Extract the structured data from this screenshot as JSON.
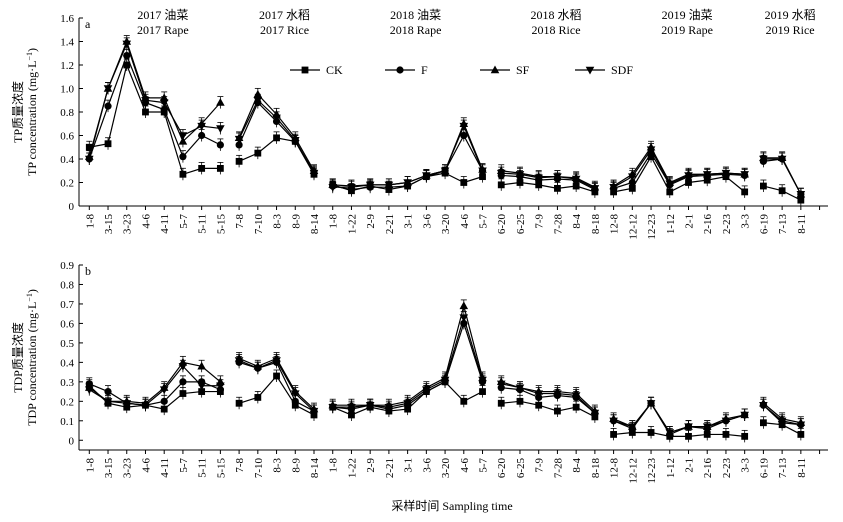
{
  "chart_data": {
    "type": "line",
    "xlabel": "采样时间 Sampling time",
    "x_labels": [
      "1-8",
      "3-15",
      "3-23",
      "4-6",
      "4-11",
      "5-7",
      "5-11",
      "5-15",
      "7-8",
      "7-10",
      "8-3",
      "8-9",
      "8-14",
      "1-8",
      "1-22",
      "2-9",
      "2-21",
      "3-1",
      "3-6",
      "3-20",
      "4-6",
      "5-7",
      "6-20",
      "6-25",
      "7-9",
      "7-28",
      "8-4",
      "8-18",
      "12-8",
      "12-12",
      "12-23",
      "1-12",
      "2-1",
      "2-16",
      "2-23",
      "3-3",
      "6-19",
      "7-13",
      "8-11"
    ],
    "groups": [
      {
        "line1": "2017 油菜",
        "line2": "2017 Rape",
        "start": 0,
        "count": 8
      },
      {
        "line1": "2017 水稻",
        "line2": "2017 Rice",
        "start": 8,
        "count": 5
      },
      {
        "line1": "2018 油菜",
        "line2": "2018 Rape",
        "start": 13,
        "count": 9
      },
      {
        "line1": "2018 水稻",
        "line2": "2018 Rice",
        "start": 22,
        "count": 6
      },
      {
        "line1": "2019 油菜",
        "line2": "2019 Rape",
        "start": 28,
        "count": 8
      },
      {
        "line1": "2019 水稻",
        "line2": "2019 Rice",
        "start": 36,
        "count": 3
      }
    ],
    "legend": [
      "CK",
      "F",
      "SF",
      "SDF"
    ],
    "panels": [
      {
        "label": "a",
        "ylabel_cn": "TP质量浓度",
        "ylabel_en": "TP concentration (mg·L",
        "ylim": [
          0,
          1.6
        ],
        "yticks": [
          "0",
          "0.2",
          "0.4",
          "0.6",
          "0.8",
          "1.0",
          "1.2",
          "1.4",
          "1.6"
        ],
        "series": [
          {
            "name": "CK",
            "values": [
              [
                0.5,
                0.53,
                1.2,
                0.8,
                0.8,
                0.27,
                0.32,
                0.32
              ],
              [
                0.38,
                0.45,
                0.58,
                0.55,
                0.27
              ],
              [
                0.18,
                0.13,
                0.17,
                0.14,
                0.17,
                0.25,
                0.28,
                0.2,
                0.25
              ],
              [
                0.18,
                0.2,
                0.18,
                0.15,
                0.17,
                0.12
              ],
              [
                0.12,
                0.15,
                0.42,
                0.12,
                0.2,
                0.22,
                0.25,
                0.12
              ],
              [
                0.17,
                0.13,
                0.05
              ]
            ]
          },
          {
            "name": "F",
            "values": [
              [
                0.4,
                0.85,
                1.28,
                0.88,
                0.82,
                0.42,
                0.6,
                0.52
              ],
              [
                0.52,
                0.88,
                0.72,
                0.55,
                0.29
              ],
              [
                0.17,
                0.14,
                0.16,
                0.16,
                0.17,
                0.25,
                0.3,
                0.6,
                0.3
              ],
              [
                0.26,
                0.25,
                0.22,
                0.23,
                0.22,
                0.14
              ],
              [
                0.15,
                0.2,
                0.45,
                0.18,
                0.25,
                0.26,
                0.27,
                0.26
              ],
              [
                0.38,
                0.4,
                0.1
              ]
            ]
          },
          {
            "name": "SF",
            "values": [
              [
                0.42,
                1.0,
                1.4,
                0.92,
                0.92,
                0.55,
                0.7,
                0.88
              ],
              [
                0.58,
                0.95,
                0.78,
                0.58,
                0.3
              ],
              [
                0.18,
                0.17,
                0.18,
                0.18,
                0.2,
                0.26,
                0.3,
                0.7,
                0.31
              ],
              [
                0.3,
                0.28,
                0.25,
                0.25,
                0.24,
                0.16
              ],
              [
                0.17,
                0.27,
                0.5,
                0.2,
                0.27,
                0.27,
                0.28,
                0.27
              ],
              [
                0.41,
                0.41,
                0.1
              ]
            ]
          },
          {
            "name": "SDF",
            "values": [
              [
                0.4,
                1.0,
                1.38,
                0.9,
                0.88,
                0.6,
                0.68,
                0.66
              ],
              [
                0.57,
                0.9,
                0.75,
                0.56,
                0.28
              ],
              [
                0.16,
                0.16,
                0.18,
                0.18,
                0.2,
                0.26,
                0.3,
                0.68,
                0.3
              ],
              [
                0.28,
                0.27,
                0.24,
                0.25,
                0.23,
                0.15
              ],
              [
                0.16,
                0.25,
                0.48,
                0.19,
                0.26,
                0.27,
                0.28,
                0.27
              ],
              [
                0.4,
                0.4,
                0.1
              ]
            ]
          }
        ]
      },
      {
        "label": "b",
        "ylabel_cn": "TDP质量浓度",
        "ylabel_en": "TDP concentration (mg·L",
        "ylim": [
          -0.05,
          0.9
        ],
        "yticks": [
          "0",
          "0.1",
          "0.2",
          "0.3",
          "0.4",
          "0.5",
          "0.6",
          "0.7",
          "0.8",
          "0.9"
        ],
        "series": [
          {
            "name": "CK",
            "values": [
              [
                0.28,
                0.19,
                0.17,
                0.18,
                0.16,
                0.24,
                0.25,
                0.25
              ],
              [
                0.19,
                0.22,
                0.33,
                0.18,
                0.13
              ],
              [
                0.17,
                0.13,
                0.17,
                0.15,
                0.16,
                0.25,
                0.3,
                0.2,
                0.25
              ],
              [
                0.19,
                0.2,
                0.18,
                0.15,
                0.17,
                0.12
              ],
              [
                0.03,
                0.04,
                0.04,
                0.02,
                0.02,
                0.03,
                0.03,
                0.02
              ],
              [
                0.09,
                0.08,
                0.03
              ]
            ]
          },
          {
            "name": "F",
            "values": [
              [
                0.29,
                0.25,
                0.19,
                0.18,
                0.2,
                0.3,
                0.3,
                0.26
              ],
              [
                0.4,
                0.37,
                0.4,
                0.2,
                0.15
              ],
              [
                0.17,
                0.16,
                0.18,
                0.16,
                0.18,
                0.25,
                0.3,
                0.6,
                0.3
              ],
              [
                0.27,
                0.26,
                0.22,
                0.23,
                0.22,
                0.14
              ],
              [
                0.1,
                0.06,
                0.19,
                0.03,
                0.07,
                0.06,
                0.1,
                0.13
              ],
              [
                0.18,
                0.09,
                0.08
              ]
            ]
          },
          {
            "name": "SF",
            "values": [
              [
                0.27,
                0.2,
                0.2,
                0.19,
                0.27,
                0.4,
                0.38,
                0.3
              ],
              [
                0.42,
                0.38,
                0.42,
                0.25,
                0.16
              ],
              [
                0.18,
                0.18,
                0.18,
                0.18,
                0.2,
                0.27,
                0.32,
                0.69,
                0.32
              ],
              [
                0.3,
                0.27,
                0.25,
                0.25,
                0.24,
                0.15
              ],
              [
                0.11,
                0.07,
                0.19,
                0.04,
                0.07,
                0.07,
                0.11,
                0.13
              ],
              [
                0.19,
                0.11,
                0.09
              ]
            ]
          },
          {
            "name": "SDF",
            "values": [
              [
                0.26,
                0.2,
                0.19,
                0.18,
                0.26,
                0.38,
                0.28,
                0.28
              ],
              [
                0.41,
                0.37,
                0.41,
                0.24,
                0.15
              ],
              [
                0.17,
                0.17,
                0.18,
                0.17,
                0.19,
                0.26,
                0.31,
                0.63,
                0.31
              ],
              [
                0.29,
                0.27,
                0.24,
                0.24,
                0.23,
                0.14
              ],
              [
                0.1,
                0.07,
                0.19,
                0.04,
                0.07,
                0.07,
                0.1,
                0.13
              ],
              [
                0.18,
                0.1,
                0.08
              ]
            ]
          }
        ]
      }
    ]
  }
}
